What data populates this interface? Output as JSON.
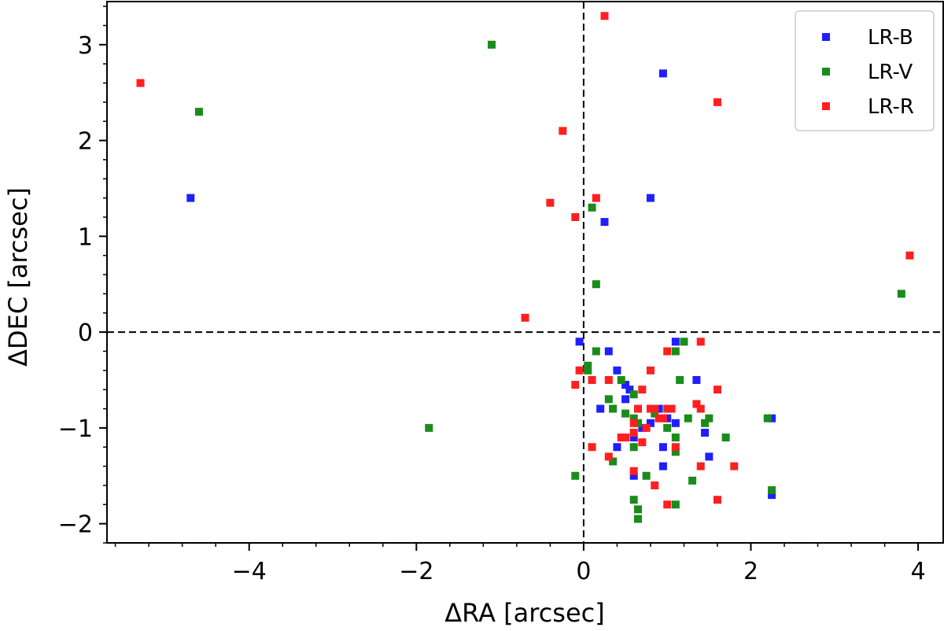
{
  "chart_data": {
    "type": "scatter",
    "xlabel": "ΔRA [arcsec]",
    "ylabel": "ΔDEC [arcsec]",
    "xlim": [
      -5.7,
      4.3
    ],
    "ylim": [
      -2.2,
      3.45
    ],
    "xticks": [
      -4,
      -2,
      0,
      2,
      4
    ],
    "xtick_labels": [
      "−4",
      "−2",
      "0",
      "2",
      "4"
    ],
    "yticks": [
      -2,
      -1,
      0,
      1,
      2,
      3
    ],
    "ytick_labels": [
      "−2",
      "−1",
      "0",
      "1",
      "2",
      "3"
    ],
    "xminor_step": 0.4,
    "yminor_step": 0.2,
    "reference_lines": {
      "x": 0,
      "y": 0,
      "style": "dashed"
    },
    "legend_position": "top-right",
    "series": [
      {
        "name": "LR-B",
        "color": "#1f1fff",
        "points": [
          [
            -4.7,
            1.4
          ],
          [
            0.95,
            2.7
          ],
          [
            0.8,
            1.4
          ],
          [
            0.25,
            1.15
          ],
          [
            -0.05,
            -0.1
          ],
          [
            0.3,
            -0.2
          ],
          [
            1.1,
            -0.1
          ],
          [
            0.4,
            -0.4
          ],
          [
            0.5,
            -0.55
          ],
          [
            0.55,
            -0.6
          ],
          [
            0.5,
            -0.7
          ],
          [
            0.2,
            -0.8
          ],
          [
            1.35,
            -0.5
          ],
          [
            0.9,
            -0.8
          ],
          [
            1.0,
            -0.9
          ],
          [
            0.8,
            -0.95
          ],
          [
            1.1,
            -0.95
          ],
          [
            0.7,
            -1.0
          ],
          [
            0.6,
            -1.1
          ],
          [
            1.45,
            -1.05
          ],
          [
            0.4,
            -1.2
          ],
          [
            0.95,
            -1.2
          ],
          [
            1.5,
            -1.3
          ],
          [
            0.95,
            -1.4
          ],
          [
            0.6,
            -1.5
          ],
          [
            2.25,
            -0.9
          ],
          [
            2.25,
            -1.7
          ]
        ]
      },
      {
        "name": "LR-V",
        "color": "#1a8c1a",
        "points": [
          [
            -1.1,
            3.0
          ],
          [
            -4.6,
            2.3
          ],
          [
            0.1,
            1.3
          ],
          [
            0.15,
            0.5
          ],
          [
            3.8,
            0.4
          ],
          [
            -1.85,
            -1.0
          ],
          [
            0.15,
            -0.2
          ],
          [
            1.2,
            -0.1
          ],
          [
            0.05,
            -0.35
          ],
          [
            0.05,
            -0.4
          ],
          [
            0.45,
            -0.5
          ],
          [
            1.15,
            -0.5
          ],
          [
            0.6,
            -0.65
          ],
          [
            0.3,
            -0.7
          ],
          [
            0.35,
            -0.8
          ],
          [
            0.5,
            -0.85
          ],
          [
            0.6,
            -0.9
          ],
          [
            0.85,
            -0.85
          ],
          [
            1.25,
            -0.9
          ],
          [
            1.5,
            -0.9
          ],
          [
            1.45,
            -0.95
          ],
          [
            0.65,
            -0.95
          ],
          [
            1.0,
            -1.0
          ],
          [
            1.1,
            -1.1
          ],
          [
            1.7,
            -1.1
          ],
          [
            0.6,
            -1.2
          ],
          [
            1.1,
            -1.25
          ],
          [
            0.35,
            -1.35
          ],
          [
            0.75,
            -1.5
          ],
          [
            1.3,
            -1.55
          ],
          [
            -0.1,
            -1.5
          ],
          [
            0.6,
            -1.75
          ],
          [
            0.65,
            -1.85
          ],
          [
            0.65,
            -1.95
          ],
          [
            1.1,
            -1.8
          ],
          [
            2.2,
            -0.9
          ],
          [
            2.25,
            -1.65
          ],
          [
            1.1,
            -0.2
          ]
        ]
      },
      {
        "name": "LR-R",
        "color": "#ff1f1f",
        "points": [
          [
            -5.3,
            2.6
          ],
          [
            0.25,
            3.3
          ],
          [
            1.6,
            2.4
          ],
          [
            -0.25,
            2.1
          ],
          [
            -0.4,
            1.35
          ],
          [
            0.15,
            1.4
          ],
          [
            -0.1,
            1.2
          ],
          [
            3.9,
            0.8
          ],
          [
            -0.7,
            0.15
          ],
          [
            1.4,
            -0.1
          ],
          [
            1.0,
            -0.2
          ],
          [
            -0.05,
            -0.4
          ],
          [
            0.8,
            -0.4
          ],
          [
            0.1,
            -0.5
          ],
          [
            0.3,
            -0.5
          ],
          [
            -0.1,
            -0.55
          ],
          [
            0.7,
            -0.6
          ],
          [
            1.6,
            -0.6
          ],
          [
            1.35,
            -0.75
          ],
          [
            1.4,
            -0.8
          ],
          [
            0.65,
            -0.8
          ],
          [
            0.8,
            -0.8
          ],
          [
            0.85,
            -0.8
          ],
          [
            1.0,
            -0.8
          ],
          [
            1.05,
            -0.8
          ],
          [
            0.9,
            -0.9
          ],
          [
            0.95,
            -0.9
          ],
          [
            0.6,
            -0.95
          ],
          [
            0.75,
            -1.0
          ],
          [
            0.6,
            -1.05
          ],
          [
            0.45,
            -1.1
          ],
          [
            0.5,
            -1.1
          ],
          [
            0.7,
            -1.15
          ],
          [
            0.1,
            -1.2
          ],
          [
            1.1,
            -1.2
          ],
          [
            0.3,
            -1.3
          ],
          [
            0.6,
            -1.45
          ],
          [
            0.85,
            -1.6
          ],
          [
            1.4,
            -1.4
          ],
          [
            1.8,
            -1.4
          ],
          [
            1.6,
            -1.75
          ],
          [
            1.0,
            -1.8
          ]
        ]
      }
    ]
  }
}
